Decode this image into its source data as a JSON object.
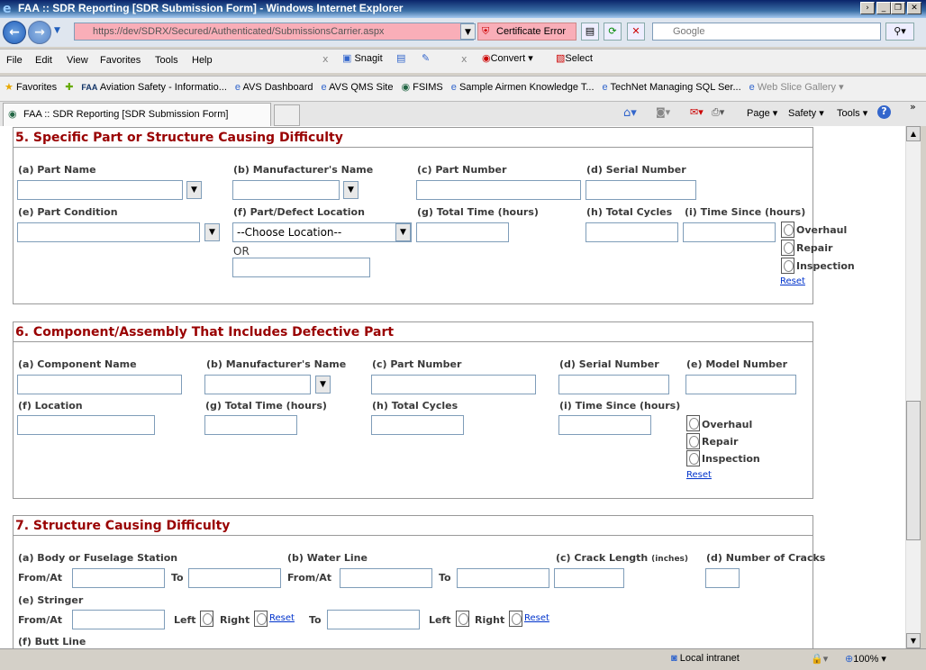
{
  "window": {
    "title": "FAA :: SDR Reporting [SDR Submission Form] - Windows Internet Explorer"
  },
  "address": {
    "url": "https://dev/SDRX/Secured/Authenticated/SubmissionsCarrier.aspx",
    "cert_error": "Certificate Error",
    "search_placeholder": "Google"
  },
  "menu": [
    "File",
    "Edit",
    "View",
    "Favorites",
    "Tools",
    "Help"
  ],
  "toolbar": {
    "snagit": "Snagit",
    "convert": "Convert",
    "select": "Select"
  },
  "favorites": {
    "label": "Favorites",
    "items": [
      "Aviation Safety - Informatio...",
      "AVS Dashboard",
      "AVS QMS Site",
      "FSIMS",
      "Sample Airmen Knowledge T...",
      "TechNet Managing SQL Ser...",
      "Web Slice Gallery"
    ]
  },
  "tab": {
    "title": "FAA :: SDR Reporting [SDR Submission Form]"
  },
  "commandbar": {
    "page": "Page",
    "safety": "Safety",
    "tools": "Tools"
  },
  "section5": {
    "title": "5. Specific Part or Structure Causing Difficulty",
    "a": "(a) Part Name",
    "b": "(b) Manufacturer's Name",
    "c": "(c) Part Number",
    "d": "(d) Serial Number",
    "e": "(e) Part Condition",
    "f": "(f) Part/Defect Location",
    "g": "(g) Total Time (hours)",
    "h": "(h) Total Cycles",
    "i": "(i) Time Since (hours)",
    "location_selected": "--Choose Location--",
    "or": "OR",
    "overhaul": "Overhaul",
    "repair": "Repair",
    "inspection": "Inspection",
    "reset": "Reset"
  },
  "section6": {
    "title": "6. Component/Assembly That Includes Defective Part",
    "a": "(a) Component Name",
    "b": "(b) Manufacturer's Name",
    "c": "(c) Part Number",
    "d": "(d) Serial Number",
    "e": "(e) Model Number",
    "f": "(f) Location",
    "g": "(g) Total Time (hours)",
    "h": "(h) Total Cycles",
    "i": "(i) Time Since (hours)",
    "overhaul": "Overhaul",
    "repair": "Repair",
    "inspection": "Inspection",
    "reset": "Reset"
  },
  "section7": {
    "title": "7. Structure Causing Difficulty",
    "a": "(a) Body or Fuselage Station",
    "b": "(b) Water Line",
    "c": "(c) Crack Length",
    "c_unit": "(inches)",
    "d": "(d) Number of Cracks",
    "e": "(e) Stringer",
    "f": "(f) Butt Line",
    "from_at": "From/At",
    "to": "To",
    "left": "Left",
    "right": "Right",
    "reset": "Reset"
  },
  "status": {
    "zone": "Local intranet",
    "zoom": "100%"
  }
}
